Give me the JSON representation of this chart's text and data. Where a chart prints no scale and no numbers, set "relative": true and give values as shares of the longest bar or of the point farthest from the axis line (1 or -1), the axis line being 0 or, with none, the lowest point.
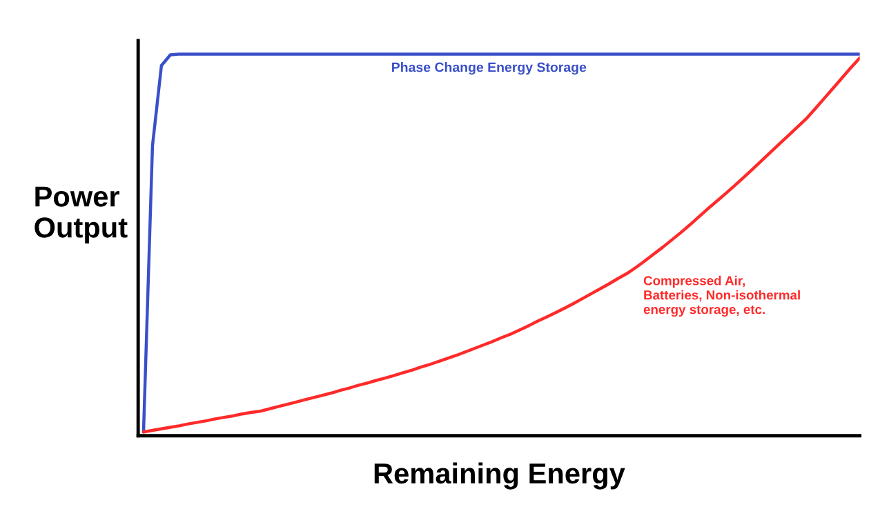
{
  "chart_data": {
    "type": "line",
    "relative": true,
    "xlabel": "Remaining Energy",
    "ylabel": "Power\nOutput",
    "tick_labels": false,
    "marker": "none",
    "line_style": "solid",
    "categories": [
      null,
      null,
      null,
      null,
      null,
      null,
      null,
      null,
      null,
      null,
      null,
      null,
      null,
      null,
      null,
      null,
      null,
      null,
      null,
      null,
      null,
      null,
      null,
      null,
      null,
      null,
      null,
      null,
      null,
      null,
      null,
      null,
      null,
      null,
      null,
      null,
      null,
      null,
      null,
      null,
      null,
      null,
      null,
      null,
      null,
      null,
      null,
      null,
      null,
      null,
      null,
      null,
      null,
      null,
      null,
      null,
      null,
      null,
      null,
      null,
      null,
      null,
      null,
      null,
      null,
      null,
      null,
      null,
      null,
      null,
      null,
      null,
      null,
      null,
      null,
      null,
      null,
      null,
      null,
      null,
      null
    ],
    "series": [
      {
        "name": "Phase Change Energy Storage",
        "color": "#3a50c8",
        "values": [
          0.01,
          0.76,
          0.97,
          0.998,
          1.0,
          1.0,
          1.0,
          1.0,
          1.0,
          1.0,
          1.0,
          1.0,
          1.0,
          1.0,
          1.0,
          1.0,
          1.0,
          1.0,
          1.0,
          1.0,
          1.0,
          1.0,
          1.0,
          1.0,
          1.0,
          1.0,
          1.0,
          1.0,
          1.0,
          1.0,
          1.0,
          1.0,
          1.0,
          1.0,
          1.0,
          1.0,
          1.0,
          1.0,
          1.0,
          1.0,
          1.0,
          1.0,
          1.0,
          1.0,
          1.0,
          1.0,
          1.0,
          1.0,
          1.0,
          1.0,
          1.0,
          1.0,
          1.0,
          1.0,
          1.0,
          1.0,
          1.0,
          1.0,
          1.0,
          1.0,
          1.0,
          1.0,
          1.0,
          1.0,
          1.0,
          1.0,
          1.0,
          1.0,
          1.0,
          1.0,
          1.0,
          1.0,
          1.0,
          1.0,
          1.0,
          1.0,
          1.0,
          1.0,
          1.0,
          1.0,
          1.0
        ]
      },
      {
        "name": "Compressed Air,\nBatteries, Non-isothermal\nenergy storage, etc.",
        "color": "#ff2a2a",
        "values": [
          0.01,
          0.014,
          0.018,
          0.022,
          0.026,
          0.031,
          0.035,
          0.039,
          0.044,
          0.048,
          0.052,
          0.057,
          0.061,
          0.064,
          0.07,
          0.076,
          0.082,
          0.088,
          0.094,
          0.1,
          0.106,
          0.112,
          0.119,
          0.125,
          0.132,
          0.138,
          0.145,
          0.151,
          0.158,
          0.165,
          0.172,
          0.18,
          0.187,
          0.195,
          0.203,
          0.211,
          0.22,
          0.229,
          0.238,
          0.247,
          0.257,
          0.266,
          0.277,
          0.288,
          0.3,
          0.311,
          0.322,
          0.334,
          0.346,
          0.359,
          0.372,
          0.385,
          0.398,
          0.412,
          0.425,
          0.441,
          0.458,
          0.476,
          0.494,
          0.513,
          0.532,
          0.552,
          0.573,
          0.594,
          0.614,
          0.634,
          0.655,
          0.676,
          0.698,
          0.72,
          0.742,
          0.764,
          0.786,
          0.808,
          0.83,
          0.856,
          0.883,
          0.91,
          0.937,
          0.964,
          0.99
        ]
      }
    ]
  }
}
